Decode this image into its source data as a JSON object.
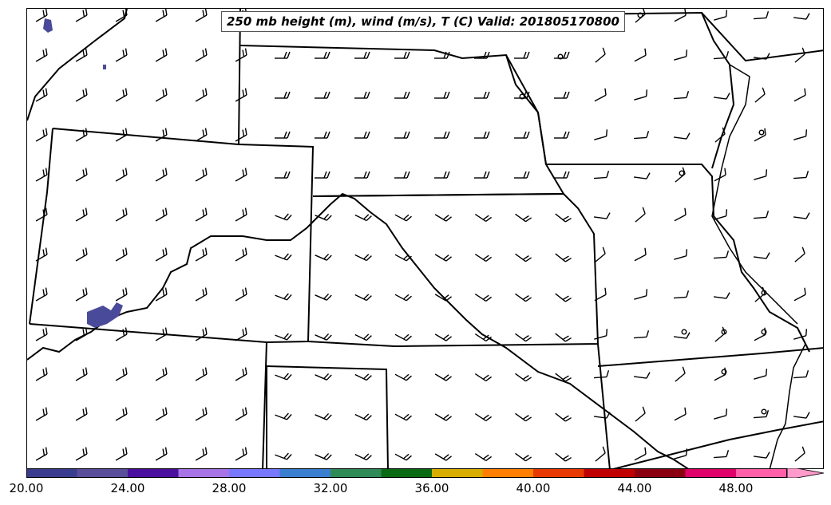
{
  "map": {
    "title": "250 mb height (m), wind (m/s), T (C) Valid: 201805170800"
  },
  "colorbar": {
    "colors": [
      "#3a3d8f",
      "#5a4d9a",
      "#4b0fa0",
      "#a774e6",
      "#7878ff",
      "#3a7fcf",
      "#2e8b57",
      "#0a6a14",
      "#d6ad00",
      "#ff7f00",
      "#e83a00",
      "#c00000",
      "#8b0010",
      "#e0006a",
      "#ff5fa8",
      "#ff9acb"
    ],
    "tick_labels": [
      "20.00",
      "24.00",
      "28.00",
      "32.00",
      "36.00",
      "40.00",
      "44.00",
      "48.00"
    ]
  },
  "temperature_fill_color": "#4a4a9a"
}
